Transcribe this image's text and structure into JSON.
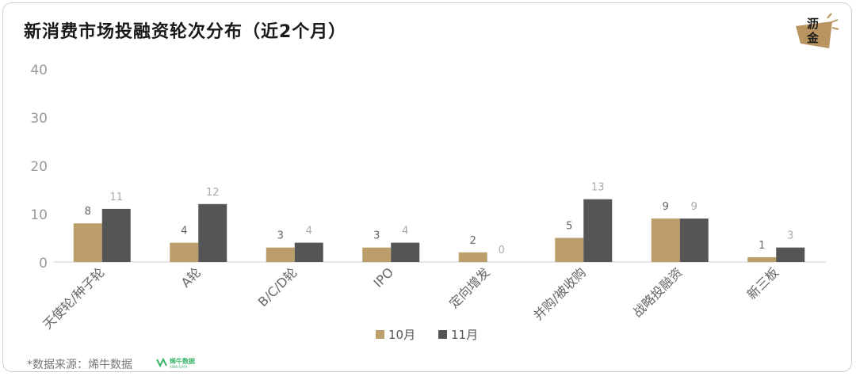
{
  "title": "新消费市场投融资轮次分布（近2个月）",
  "logo_text": [
    "沥",
    "金"
  ],
  "footer_text": "*数据来源：烯牛数据",
  "brand_text": "烯牛数据",
  "brand_sub": "XINIU DATA",
  "colors": {
    "oct": "#BC9E6A",
    "nov": "#555555",
    "axis": "#cccccc",
    "ticks": "#999999"
  },
  "chart_data": {
    "type": "bar",
    "title": "新消费市场投融资轮次分布（近2个月）",
    "categories": [
      "天使轮/种子轮",
      "A轮",
      "B/C/D轮",
      "IPO",
      "定向增发",
      "并购/被收购",
      "战略投融资",
      "新三板"
    ],
    "series": [
      {
        "name": "10月",
        "values": [
          8,
          4,
          3,
          3,
          2,
          5,
          9,
          1
        ]
      },
      {
        "name": "11月",
        "values": [
          11,
          12,
          4,
          4,
          0,
          13,
          9,
          3
        ]
      }
    ],
    "ylim": [
      0,
      40
    ],
    "yticks": [
      0,
      10,
      20,
      30,
      40
    ],
    "grid": false,
    "legend": "bottom-center"
  }
}
